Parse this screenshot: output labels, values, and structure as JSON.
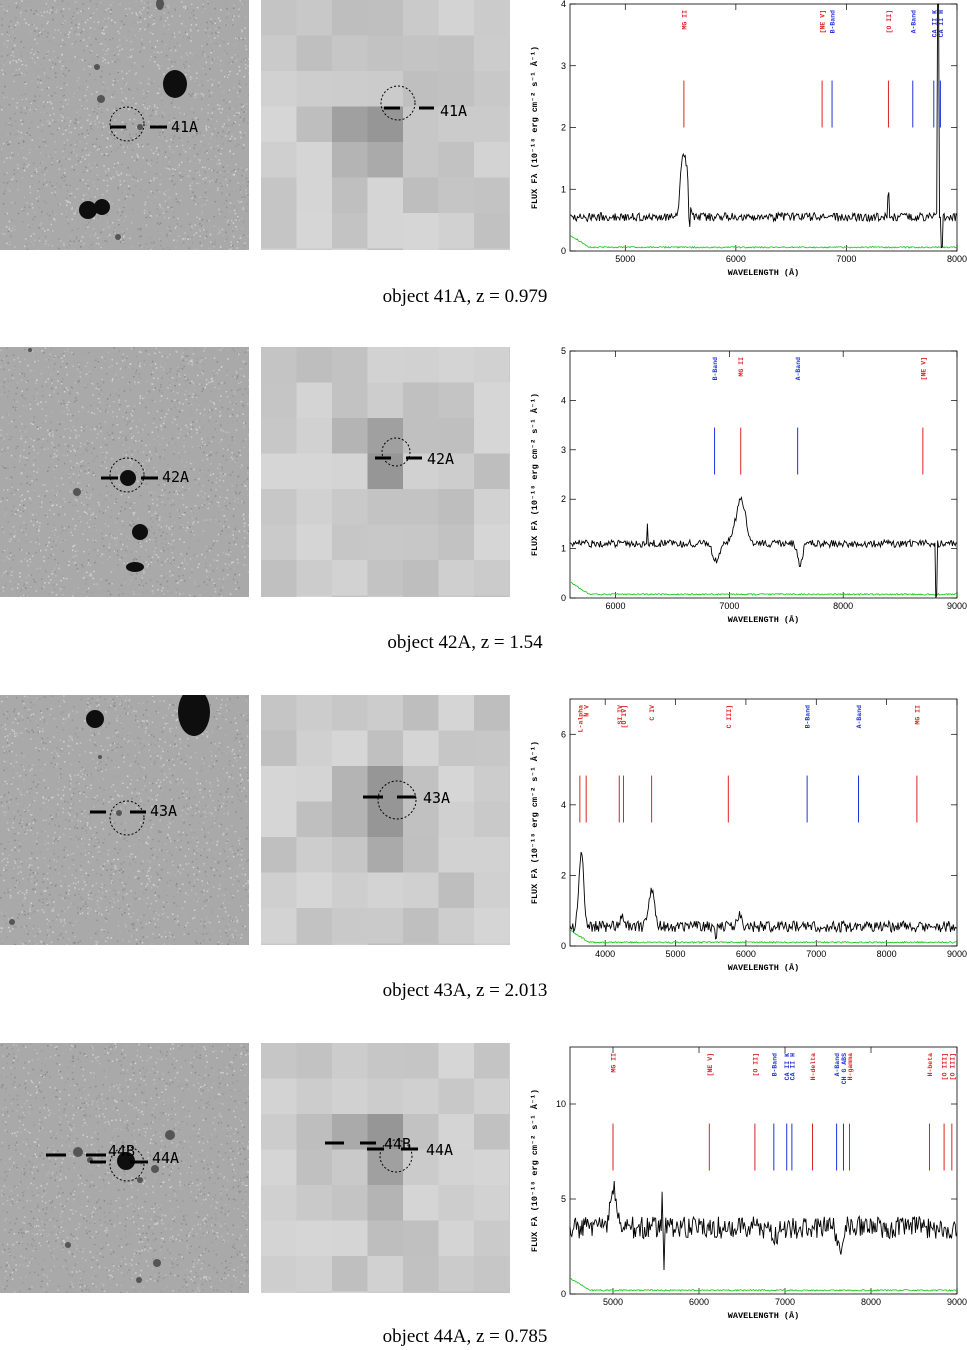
{
  "colors": {
    "emission": "#dd2222",
    "absorption": "#2233dd",
    "noise": "#22cc22",
    "spectrum": "#000000",
    "optical_bg": "#a9a9a9",
    "xray_bg": "#cbcbcb"
  },
  "axis_text": {
    "xlabel": "WAVELENGTH (Å)",
    "ylabel": "FLUX Fλ (10⁻¹⁸ erg cm⁻² s⁻¹ Å⁻¹)"
  },
  "chart_data": [
    {
      "type": "line",
      "object": "41A",
      "caption": "object 41A, z = 0.979",
      "source_labels": [
        "41A"
      ],
      "xlim": [
        4500,
        8000
      ],
      "ylim": [
        0,
        4
      ],
      "xticks": [
        5000,
        6000,
        7000,
        8000
      ],
      "yticks": [
        0,
        1,
        2,
        3,
        4
      ],
      "continuum": 0.55,
      "noise_level": 0.07,
      "bumps": [
        [
          5520,
          1.0,
          30
        ],
        [
          5560,
          0.6,
          25
        ]
      ],
      "spikes": [
        [
          7380,
          0.35
        ],
        [
          7830,
          3.8
        ],
        [
          7860,
          -0.5
        ],
        [
          5580,
          -0.4
        ]
      ],
      "lines": [
        {
          "label": "MG II",
          "wl": 5530,
          "kind": "emission"
        },
        {
          "label": "[NE V]",
          "wl": 6780,
          "kind": "emission"
        },
        {
          "label": "B-Band",
          "wl": 6870,
          "kind": "absorption"
        },
        {
          "label": "[O II]",
          "wl": 7380,
          "kind": "emission"
        },
        {
          "label": "A-Band",
          "wl": 7600,
          "kind": "absorption"
        },
        {
          "label": "CA II K",
          "wl": 7790,
          "kind": "absorption"
        },
        {
          "label": "CA II H",
          "wl": 7850,
          "kind": "absorption"
        }
      ]
    },
    {
      "type": "line",
      "object": "42A",
      "caption": "object 42A, z = 1.54",
      "source_labels": [
        "42A"
      ],
      "xlim": [
        5600,
        9000
      ],
      "ylim": [
        0,
        5
      ],
      "xticks": [
        6000,
        7000,
        8000,
        9000
      ],
      "yticks": [
        0,
        1,
        2,
        3,
        4,
        5
      ],
      "continuum": 1.1,
      "noise_level": 0.06,
      "bumps": [
        [
          7100,
          0.9,
          60
        ],
        [
          6880,
          -0.35,
          40
        ],
        [
          7620,
          -0.45,
          30
        ]
      ],
      "spikes": [
        [
          6280,
          0.35
        ],
        [
          8820,
          -1.1
        ]
      ],
      "lines": [
        {
          "label": "B-Band",
          "wl": 6870,
          "kind": "absorption"
        },
        {
          "label": "MG II",
          "wl": 7100,
          "kind": "emission"
        },
        {
          "label": "A-Band",
          "wl": 7600,
          "kind": "absorption"
        },
        {
          "label": "[NE V]",
          "wl": 8700,
          "kind": "emission"
        }
      ]
    },
    {
      "type": "line",
      "object": "43A",
      "caption": "object 43A, z = 2.013",
      "source_labels": [
        "43A"
      ],
      "xlim": [
        3500,
        9000
      ],
      "ylim": [
        0,
        7
      ],
      "xticks": [
        4000,
        5000,
        6000,
        7000,
        8000,
        9000
      ],
      "yticks": [
        0,
        2,
        4,
        6
      ],
      "continuum": 0.55,
      "noise_level": 0.09,
      "bumps": [
        [
          3660,
          2.2,
          45
        ],
        [
          4660,
          1.1,
          60
        ],
        [
          5900,
          0.35,
          50
        ],
        [
          4230,
          0.25,
          40
        ]
      ],
      "spikes": [
        [
          5580,
          -0.35
        ]
      ],
      "lines": [
        {
          "label": "L-alpha",
          "wl": 3640,
          "kind": "emission"
        },
        {
          "label": "N V",
          "wl": 3730,
          "kind": "emission"
        },
        {
          "label": "SI IV",
          "wl": 4200,
          "kind": "emission"
        },
        {
          "label": "[O IV]",
          "wl": 4260,
          "kind": "emission"
        },
        {
          "label": "C IV",
          "wl": 4660,
          "kind": "emission"
        },
        {
          "label": "C III]",
          "wl": 5750,
          "kind": "emission"
        },
        {
          "label": "B-Band",
          "wl": 6870,
          "kind": "absorption"
        },
        {
          "label": "A-Band",
          "wl": 7600,
          "kind": "absorption"
        },
        {
          "label": "MG II",
          "wl": 8430,
          "kind": "emission"
        }
      ]
    },
    {
      "type": "line",
      "object": "44A",
      "caption": "object 44A, z = 0.785",
      "source_labels": [
        "44B",
        "44A"
      ],
      "xlim": [
        4500,
        9000
      ],
      "ylim": [
        0,
        13
      ],
      "xticks": [
        5000,
        6000,
        7000,
        8000,
        9000
      ],
      "yticks": [
        0,
        5,
        10
      ],
      "continuum": 3.5,
      "noise_level": 0.18,
      "bumps": [
        [
          5000,
          2.3,
          45
        ],
        [
          7640,
          -1.5,
          40
        ],
        [
          6880,
          -0.5,
          40
        ]
      ],
      "spikes": [
        [
          5577,
          2.4
        ],
        [
          5590,
          -2.4
        ]
      ],
      "lines": [
        {
          "label": "MG II",
          "wl": 5000,
          "kind": "emission"
        },
        {
          "label": "[NE V]",
          "wl": 6120,
          "kind": "emission"
        },
        {
          "label": "[O II]",
          "wl": 6650,
          "kind": "emission"
        },
        {
          "label": "B-Band",
          "wl": 6870,
          "kind": "absorption"
        },
        {
          "label": "CA II K",
          "wl": 7020,
          "kind": "absorption"
        },
        {
          "label": "CA II H",
          "wl": 7080,
          "kind": "absorption"
        },
        {
          "label": "H-delta",
          "wl": 7320,
          "kind": "emission"
        },
        {
          "label": "A-Band",
          "wl": 7600,
          "kind": "absorption"
        },
        {
          "label": "CH G ABS",
          "wl": 7680,
          "kind": "absorption"
        },
        {
          "label": "H-gamma",
          "wl": 7750,
          "kind": "emission"
        },
        {
          "label": "H-beta",
          "wl": 8680,
          "kind": "emission"
        },
        {
          "label": "[O III]",
          "wl": 8850,
          "kind": "emission"
        },
        {
          "label": "[O III]",
          "wl": 8940,
          "kind": "emission"
        }
      ]
    }
  ]
}
